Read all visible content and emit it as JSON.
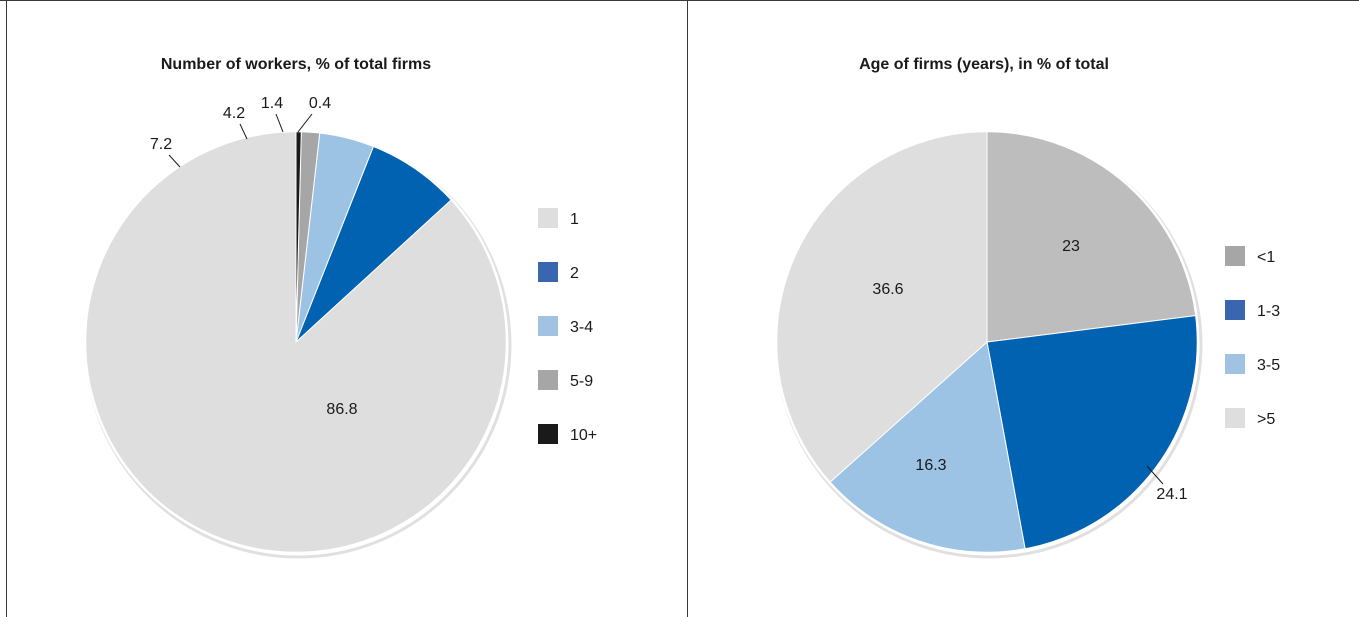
{
  "chart_data": [
    {
      "type": "pie",
      "title": "Number of workers, % of total firms",
      "categories": [
        "1",
        "2",
        "3-4",
        "5-9",
        "10+"
      ],
      "values": [
        86.8,
        7.2,
        4.2,
        1.4,
        0.4
      ],
      "data_labels": [
        "86.8",
        "7.2",
        "4.2",
        "1.4",
        "0.4"
      ],
      "colors": [
        "#dedede",
        "#0062b0",
        "#9cc3e4",
        "#a6a6a6",
        "#1a1a1a"
      ],
      "legend_colors": [
        "#dedede",
        "#3a66b0",
        "#a2c2e3",
        "#a6a6a6",
        "#1a1a1a"
      ],
      "legend": "right"
    },
    {
      "type": "pie",
      "title": "Age of firms (years), in % of total",
      "categories": [
        "<1",
        "1-3",
        "3-5",
        ">5"
      ],
      "values": [
        23,
        24.1,
        16.3,
        36.6
      ],
      "data_labels": [
        "23",
        "24.1",
        "16.3",
        "36.6"
      ],
      "colors": [
        "#bdbdbd",
        "#0062b0",
        "#9cc3e4",
        "#dedede"
      ],
      "legend_colors": [
        "#a6a6a6",
        "#3a66b0",
        "#a2c2e3",
        "#dedede"
      ],
      "legend": "right"
    }
  ]
}
